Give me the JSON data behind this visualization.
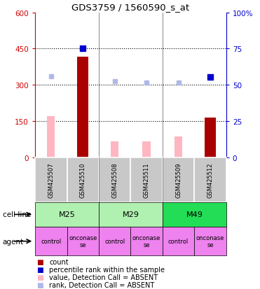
{
  "title": "GDS3759 / 1560590_s_at",
  "samples": [
    "GSM425507",
    "GSM425510",
    "GSM425508",
    "GSM425511",
    "GSM425509",
    "GSM425512"
  ],
  "agents": [
    "control",
    "onconase\nse",
    "control",
    "onconase\nse",
    "control",
    "onconase\nse"
  ],
  "agent_color": "#ee82ee",
  "count_values": [
    null,
    415,
    null,
    null,
    null,
    165
  ],
  "count_color": "#aa0000",
  "value_absent": [
    170,
    null,
    65,
    65,
    85,
    null
  ],
  "value_absent_color": "#ffb6c1",
  "rank_absent": [
    335,
    null,
    315,
    308,
    308,
    null
  ],
  "rank_absent_color": "#b0b8e8",
  "rank_present": [
    null,
    452,
    null,
    null,
    null,
    332
  ],
  "rank_present_color": "#0000cc",
  "ylim_left": [
    0,
    600
  ],
  "yticks_left": [
    0,
    150,
    300,
    450,
    600
  ],
  "ytick_labels_left": [
    "0",
    "150",
    "300",
    "450",
    "600"
  ],
  "ytick_labels_right": [
    "0",
    "25",
    "50",
    "75",
    "100%"
  ],
  "grid_values": [
    150,
    300,
    450
  ],
  "left_tick_color": "#cc0000",
  "right_tick_color": "#0000cc",
  "sample_bg_color": "#c8c8c8",
  "cell_groups": [
    {
      "label": "M25",
      "start": 0,
      "end": 1,
      "color": "#b0f0b0"
    },
    {
      "label": "M29",
      "start": 2,
      "end": 3,
      "color": "#b0f0b0"
    },
    {
      "label": "M49",
      "start": 4,
      "end": 5,
      "color": "#22dd55"
    }
  ],
  "legend_items": [
    {
      "color": "#aa0000",
      "label": "count",
      "marker": "s"
    },
    {
      "color": "#0000cc",
      "label": "percentile rank within the sample",
      "marker": "s"
    },
    {
      "color": "#ffb6c1",
      "label": "value, Detection Call = ABSENT",
      "marker": "s"
    },
    {
      "color": "#b0b8e8",
      "label": "rank, Detection Call = ABSENT",
      "marker": "s"
    }
  ]
}
